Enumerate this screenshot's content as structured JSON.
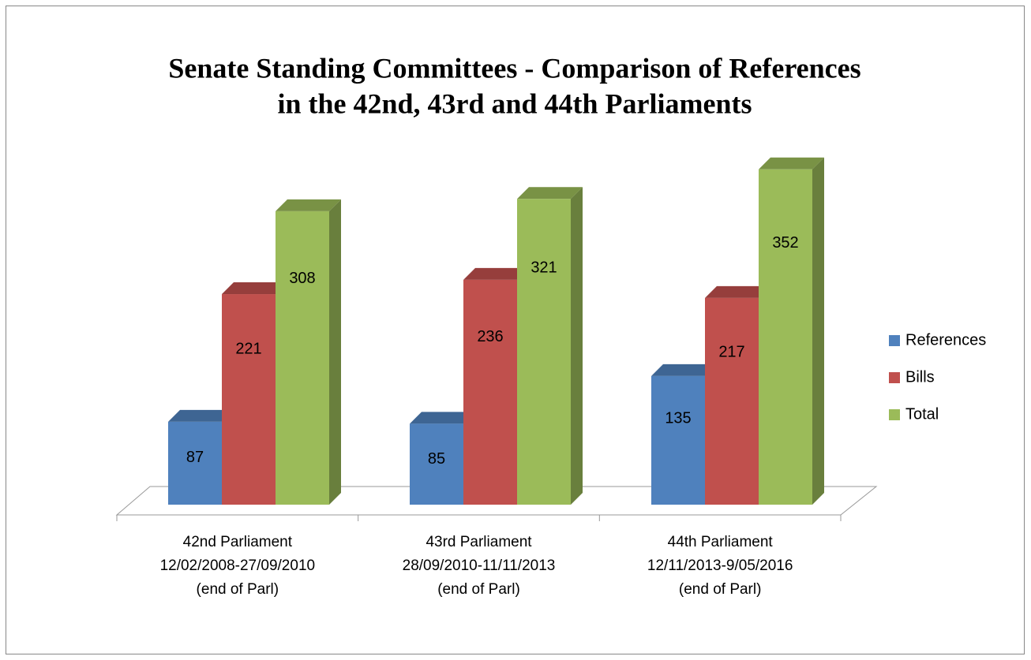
{
  "chart_data": {
    "type": "bar3d",
    "title": [
      "Senate Standing Committees - Comparison of References",
      "in the 42nd, 43rd and 44th Parliaments"
    ],
    "categories": [
      [
        "42nd Parliament",
        "12/02/2008-27/09/2010",
        "(end of Parl)"
      ],
      [
        "43rd Parliament",
        "28/09/2010-11/11/2013",
        "(end of Parl)"
      ],
      [
        "44th Parliament",
        "12/11/2013-9/05/2016",
        "(end of Parl)"
      ]
    ],
    "series": [
      {
        "name": "References",
        "color": "#4f81bd",
        "values": [
          87,
          85,
          135
        ]
      },
      {
        "name": "Bills",
        "color": "#c0504d",
        "values": [
          221,
          236,
          217
        ]
      },
      {
        "name": "Total",
        "color": "#9bbb59",
        "values": [
          308,
          321,
          352
        ]
      }
    ],
    "legend": "right"
  }
}
